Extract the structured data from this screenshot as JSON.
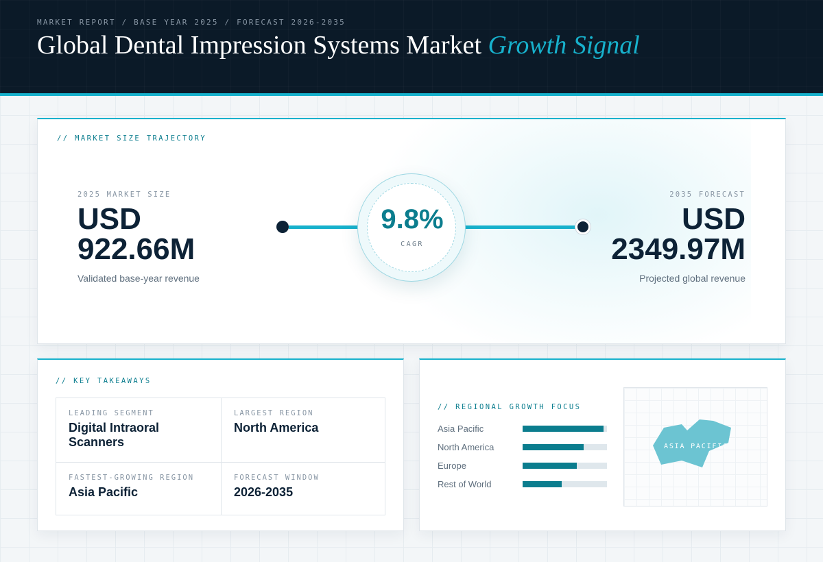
{
  "header": {
    "eyebrow": "MARKET REPORT / BASE YEAR 2025 / FORECAST 2026-2035",
    "title": "Global Dental Impression Systems Market",
    "title_accent": "Growth Signal"
  },
  "trajectory": {
    "label": "// MARKET SIZE TRAJECTORY",
    "base": {
      "eyebrow": "2025 MARKET SIZE",
      "currency": "USD",
      "amount": "922.66M",
      "note": "Validated base-year revenue"
    },
    "forecast": {
      "eyebrow": "2035 FORECAST",
      "currency": "USD",
      "amount": "2349.97M",
      "note": "Projected global revenue"
    },
    "cagr": {
      "value": "9.8%",
      "label": "CAGR"
    }
  },
  "takeaways": {
    "label": "// KEY TAKEAWAYS",
    "items": [
      {
        "key": "LEADING SEGMENT",
        "value": "Digital Intraoral Scanners"
      },
      {
        "key": "LARGEST REGION",
        "value": "North America"
      },
      {
        "key": "FASTEST-GROWING REGION",
        "value": "Asia Pacific"
      },
      {
        "key": "FORECAST WINDOW",
        "value": "2026-2035"
      }
    ]
  },
  "regional": {
    "label": "// REGIONAL GROWTH FOCUS",
    "bars": [
      {
        "name": "Asia Pacific",
        "share": 0.96
      },
      {
        "name": "North America",
        "share": 0.72
      },
      {
        "name": "Europe",
        "share": 0.64
      },
      {
        "name": "Rest of World",
        "share": 0.46
      }
    ],
    "map_label": "ASIA PACIFIC",
    "colors": {
      "accent": "#0b7d8e",
      "track": "#dfe7ec",
      "map_shape": "#6cc4d2"
    }
  }
}
